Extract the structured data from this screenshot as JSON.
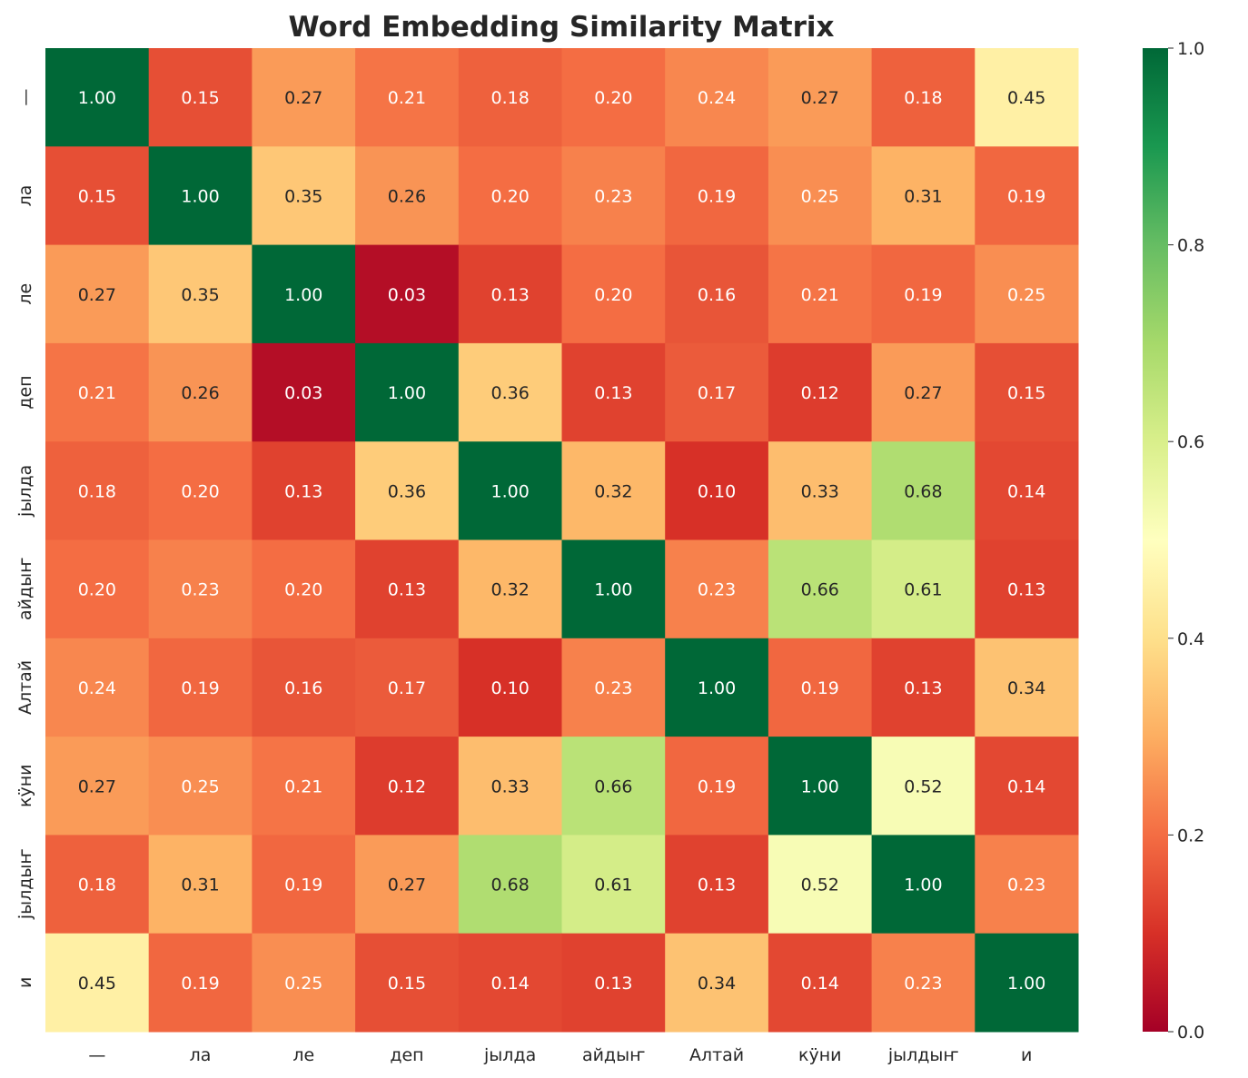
{
  "chart_data": {
    "type": "heatmap",
    "title": "Word Embedding Similarity Matrix",
    "colormap": "RdYlGn",
    "vmin": 0.0,
    "vmax": 1.0,
    "colorbar_ticks": [
      "0.0",
      "0.2",
      "0.4",
      "0.6",
      "0.8",
      "1.0"
    ],
    "x_labels": [
      "—",
      "ла",
      "ле",
      "деп",
      "јылда",
      "айдыҥ",
      "Алтай",
      "кӱни",
      "јылдыҥ",
      "и"
    ],
    "y_labels": [
      "—",
      "ла",
      "ле",
      "деп",
      "јылда",
      "айдыҥ",
      "Алтай",
      "кӱни",
      "јылдыҥ",
      "и"
    ],
    "values": [
      [
        1.0,
        0.15,
        0.27,
        0.21,
        0.18,
        0.2,
        0.24,
        0.27,
        0.18,
        0.45
      ],
      [
        0.15,
        1.0,
        0.35,
        0.26,
        0.2,
        0.23,
        0.19,
        0.25,
        0.31,
        0.19
      ],
      [
        0.27,
        0.35,
        1.0,
        0.03,
        0.13,
        0.2,
        0.16,
        0.21,
        0.19,
        0.25
      ],
      [
        0.21,
        0.26,
        0.03,
        1.0,
        0.36,
        0.13,
        0.17,
        0.12,
        0.27,
        0.15
      ],
      [
        0.18,
        0.2,
        0.13,
        0.36,
        1.0,
        0.32,
        0.1,
        0.33,
        0.68,
        0.14
      ],
      [
        0.2,
        0.23,
        0.2,
        0.13,
        0.32,
        1.0,
        0.23,
        0.66,
        0.61,
        0.13
      ],
      [
        0.24,
        0.19,
        0.16,
        0.17,
        0.1,
        0.23,
        1.0,
        0.19,
        0.13,
        0.34
      ],
      [
        0.27,
        0.25,
        0.21,
        0.12,
        0.33,
        0.66,
        0.19,
        1.0,
        0.52,
        0.14
      ],
      [
        0.18,
        0.31,
        0.19,
        0.27,
        0.68,
        0.61,
        0.13,
        0.52,
        1.0,
        0.23
      ],
      [
        0.45,
        0.19,
        0.25,
        0.15,
        0.14,
        0.13,
        0.34,
        0.14,
        0.23,
        1.0
      ]
    ]
  }
}
